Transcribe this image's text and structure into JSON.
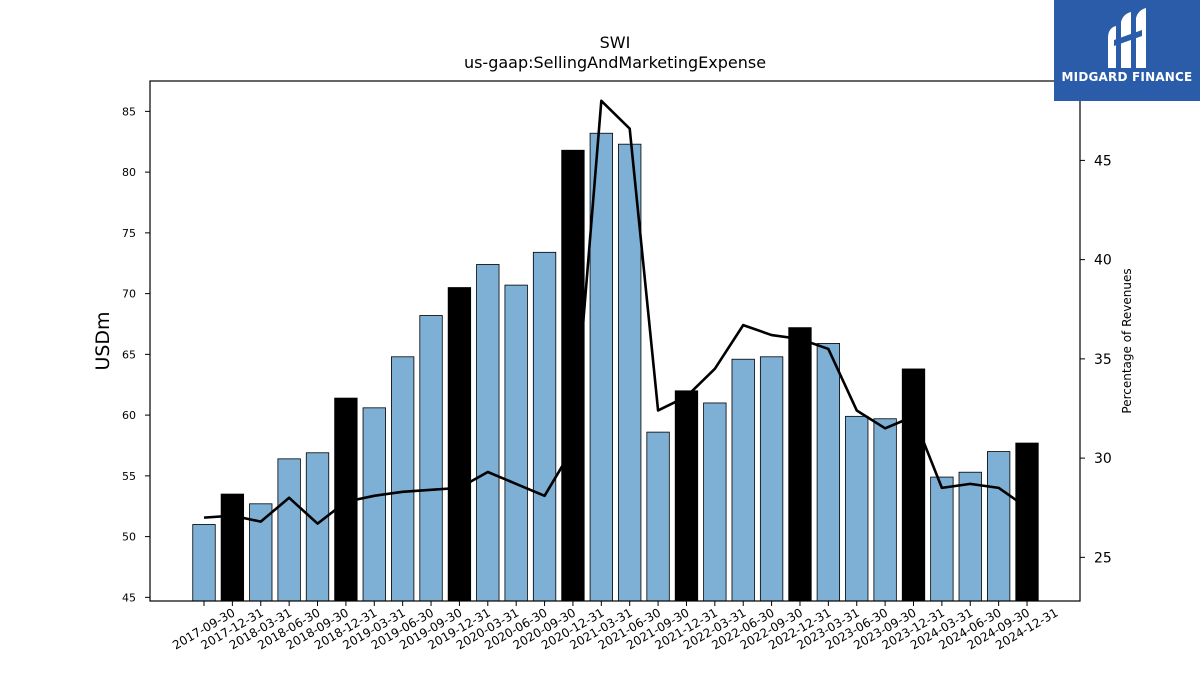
{
  "chart_data": {
    "type": "bar",
    "title": "SWI",
    "subtitle": "us-gaap:SellingAndMarketingExpense",
    "ylabel": "USDm",
    "y2label": "Percentage of Revenues",
    "ylim": [
      44.7,
      87.5
    ],
    "y2lim": [
      22.8,
      49.0
    ],
    "yticks": [
      45,
      50,
      55,
      60,
      65,
      70,
      75,
      80,
      85
    ],
    "y2ticks": [
      25,
      30,
      35,
      40,
      45
    ],
    "categories": [
      "2017-09-30",
      "2017-12-31",
      "2018-03-31",
      "2018-06-30",
      "2018-09-30",
      "2018-12-31",
      "2019-03-31",
      "2019-06-30",
      "2019-09-30",
      "2019-12-31",
      "2020-03-31",
      "2020-06-30",
      "2020-09-30",
      "2020-12-31",
      "2021-03-31",
      "2021-06-30",
      "2021-09-30",
      "2021-12-31",
      "2022-03-31",
      "2022-06-30",
      "2022-09-30",
      "2022-12-31",
      "2023-03-31",
      "2023-06-30",
      "2023-09-30",
      "2023-12-31",
      "2024-03-31",
      "2024-06-30",
      "2024-09-30",
      "2024-12-31"
    ],
    "series": [
      {
        "values": [
          51.0,
          53.5,
          52.7,
          56.4,
          56.9,
          61.4,
          60.6,
          64.8,
          68.2,
          70.5,
          72.4,
          70.7,
          73.4,
          81.8,
          83.2,
          82.3,
          58.6,
          62.0,
          61.0,
          64.6,
          64.8,
          67.2,
          65.9,
          59.9,
          59.7,
          63.8,
          54.9,
          55.3,
          57.0,
          57.7
        ],
        "colors": [
          "#7eafd4",
          "#000000",
          "#7eafd4",
          "#7eafd4",
          "#7eafd4",
          "#000000",
          "#7eafd4",
          "#7eafd4",
          "#7eafd4",
          "#000000",
          "#7eafd4",
          "#7eafd4",
          "#7eafd4",
          "#000000",
          "#7eafd4",
          "#7eafd4",
          "#7eafd4",
          "#000000",
          "#7eafd4",
          "#7eafd4",
          "#7eafd4",
          "#000000",
          "#7eafd4",
          "#7eafd4",
          "#7eafd4",
          "#000000",
          "#7eafd4",
          "#7eafd4",
          "#7eafd4",
          "#000000"
        ]
      },
      {
        "type": "line",
        "axis": "right",
        "color": "#000000",
        "values": [
          27.0,
          27.1,
          26.8,
          28.0,
          26.7,
          27.8,
          28.1,
          28.3,
          28.4,
          28.5,
          29.3,
          28.7,
          28.1,
          30.5,
          48.0,
          46.6,
          32.4,
          33.1,
          34.5,
          36.7,
          36.2,
          36.0,
          35.5,
          32.4,
          31.5,
          32.1,
          28.5,
          28.7,
          28.5,
          27.5
        ]
      }
    ],
    "grid": false
  },
  "logo": {
    "text": "MIDGARD FINANCE",
    "bg": "#2a5caa",
    "icon": "midgard-logo-icon"
  }
}
